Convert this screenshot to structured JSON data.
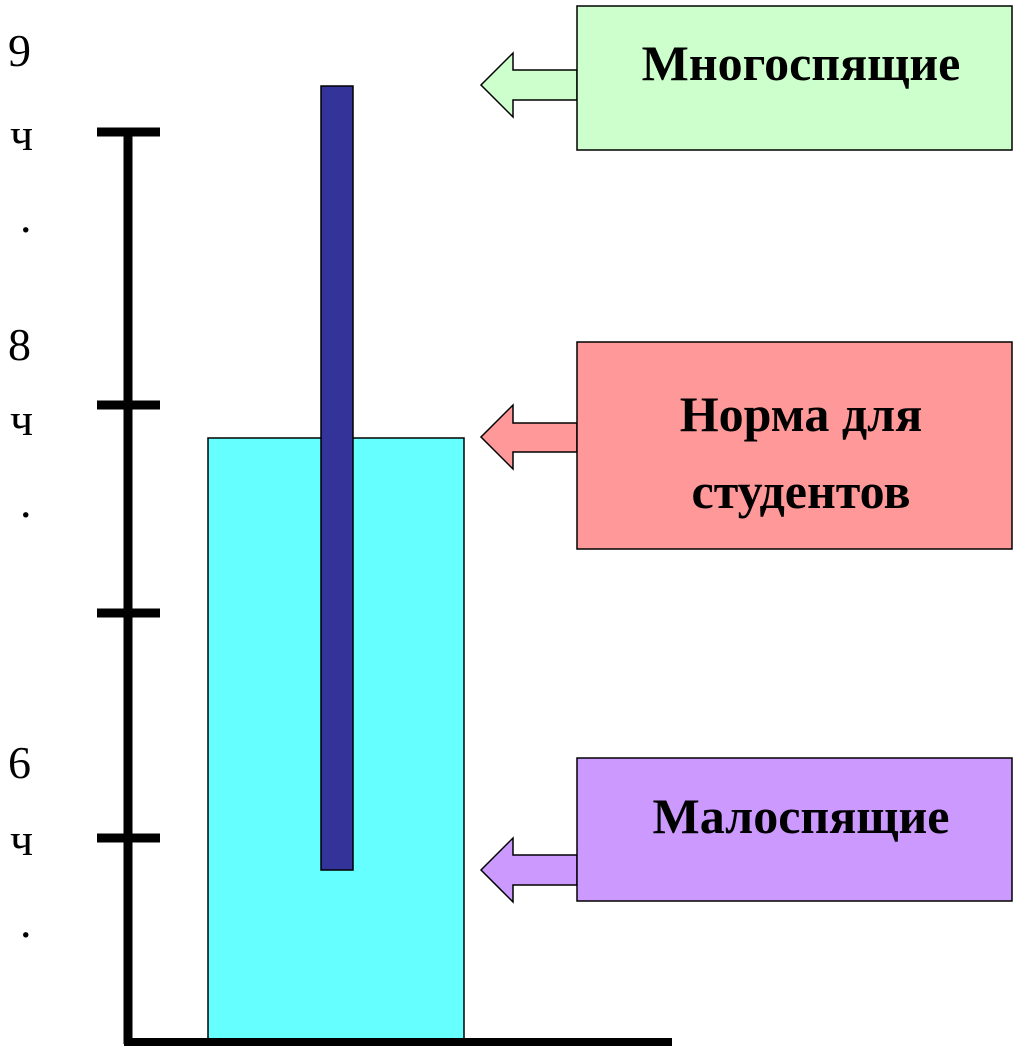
{
  "axis": {
    "labels": [
      {
        "number": "9",
        "unit": "ч",
        "dot": "."
      },
      {
        "number": "8",
        "unit": "ч",
        "dot": "."
      },
      {
        "number": "6",
        "unit": "ч",
        "dot": "."
      }
    ]
  },
  "bars": {
    "norm_color": "#66ffff",
    "range_color": "#333399"
  },
  "callouts": [
    {
      "lines": [
        "Многоспящие"
      ],
      "color": "#ccffcc"
    },
    {
      "lines": [
        "Норма для",
        "студентов"
      ],
      "color": "#ff9999"
    },
    {
      "lines": [
        "Малоспящие"
      ],
      "color": "#cc99ff"
    }
  ]
}
